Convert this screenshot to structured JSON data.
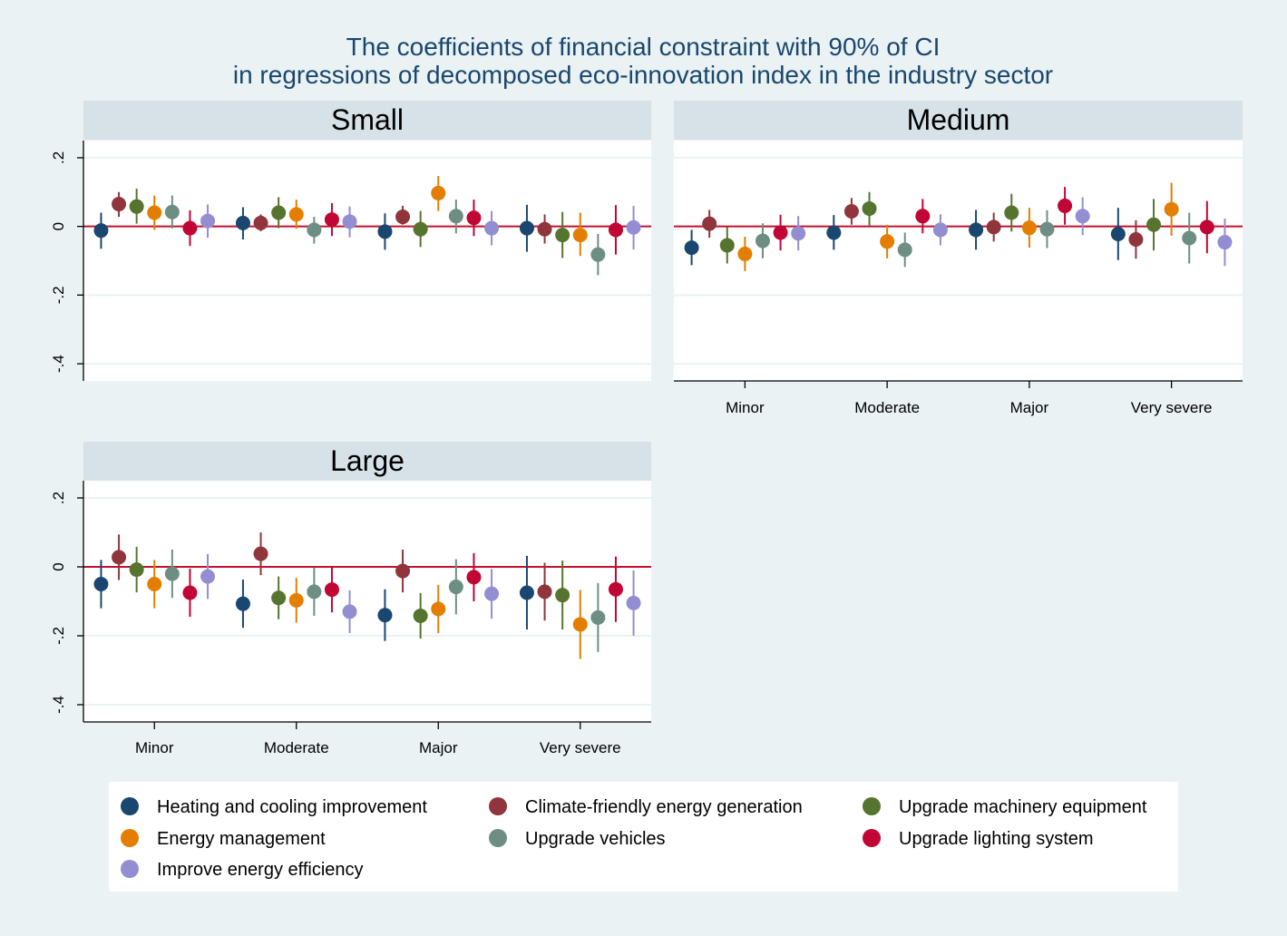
{
  "title": {
    "line1": "The coefficients of financial constraint with 90% of CI",
    "line2": "in regressions of decomposed eco-innovation index in the industry sector"
  },
  "colors": {
    "background": "#eaf2f3",
    "strip": "#d6e2e7",
    "panel": "#ffffff",
    "zero_line": "#c8102e",
    "grid": "#eaf2f3"
  },
  "legend": {
    "position": "bottom",
    "items": [
      {
        "label": "Heating and cooling improvement",
        "color": "#1a476f"
      },
      {
        "label": "Climate-friendly energy generation",
        "color": "#90353b"
      },
      {
        "label": "Upgrade machinery equipment",
        "color": "#55752f"
      },
      {
        "label": "Energy management",
        "color": "#e37e00"
      },
      {
        "label": "Upgrade vehicles",
        "color": "#6e8e84"
      },
      {
        "label": "Upgrade lighting system",
        "color": "#c10534"
      },
      {
        "label": "Improve energy efficiency",
        "color": "#938dd2"
      }
    ]
  },
  "chart_data": {
    "type": "scatter",
    "subtype": "coefficient plot with 90% confidence intervals",
    "categories": [
      "Minor",
      "Moderate",
      "Major",
      "Very severe"
    ],
    "y_ticks": [
      ".2",
      "0",
      "-.2",
      "-.4"
    ],
    "y_tick_values": [
      0.2,
      0,
      -0.2,
      -0.4
    ],
    "ylim": [
      -0.45,
      0.25
    ],
    "grid": true,
    "panels": [
      {
        "name": "Small",
        "series": [
          {
            "name": "Heating and cooling improvement",
            "estimates": [
              [
                -0.012,
                -0.065,
                0.04
              ],
              [
                0.01,
                -0.038,
                0.056
              ],
              [
                -0.015,
                -0.068,
                0.038
              ],
              [
                -0.005,
                -0.074,
                0.063
              ]
            ]
          },
          {
            "name": "Climate-friendly energy generation",
            "estimates": [
              [
                0.065,
                0.028,
                0.1
              ],
              [
                0.01,
                -0.014,
                0.035
              ],
              [
                0.028,
                0.005,
                0.06
              ],
              [
                -0.008,
                -0.05,
                0.035
              ]
            ]
          },
          {
            "name": "Upgrade machinery equipment",
            "estimates": [
              [
                0.058,
                0.008,
                0.11
              ],
              [
                0.04,
                -0.005,
                0.085
              ],
              [
                -0.008,
                -0.06,
                0.045
              ],
              [
                -0.025,
                -0.092,
                0.042
              ]
            ]
          },
          {
            "name": "Energy management",
            "estimates": [
              [
                0.04,
                -0.01,
                0.09
              ],
              [
                0.035,
                -0.007,
                0.078
              ],
              [
                0.097,
                0.045,
                0.147
              ],
              [
                -0.025,
                -0.086,
                0.04
              ]
            ]
          },
          {
            "name": "Upgrade vehicles",
            "estimates": [
              [
                0.042,
                -0.006,
                0.09
              ],
              [
                -0.01,
                -0.05,
                0.028
              ],
              [
                0.03,
                -0.02,
                0.078
              ],
              [
                -0.082,
                -0.142,
                -0.022
              ]
            ]
          },
          {
            "name": "Upgrade lighting system",
            "estimates": [
              [
                -0.005,
                -0.057,
                0.047
              ],
              [
                0.02,
                -0.028,
                0.068
              ],
              [
                0.025,
                -0.028,
                0.078
              ],
              [
                -0.01,
                -0.082,
                0.062
              ]
            ]
          },
          {
            "name": "Improve energy efficiency",
            "estimates": [
              [
                0.016,
                -0.033,
                0.064
              ],
              [
                0.014,
                -0.032,
                0.058
              ],
              [
                -0.005,
                -0.055,
                0.045
              ],
              [
                -0.003,
                -0.067,
                0.06
              ]
            ]
          }
        ]
      },
      {
        "name": "Medium",
        "series": [
          {
            "name": "Heating and cooling improvement",
            "estimates": [
              [
                -0.062,
                -0.113,
                -0.01
              ],
              [
                -0.018,
                -0.068,
                0.033
              ],
              [
                -0.01,
                -0.068,
                0.048
              ],
              [
                -0.022,
                -0.098,
                0.054
              ]
            ]
          },
          {
            "name": "Climate-friendly energy generation",
            "estimates": [
              [
                0.008,
                -0.033,
                0.048
              ],
              [
                0.044,
                0.005,
                0.083
              ],
              [
                -0.002,
                -0.044,
                0.04
              ],
              [
                -0.038,
                -0.094,
                0.018
              ]
            ]
          },
          {
            "name": "Upgrade machinery equipment",
            "estimates": [
              [
                -0.055,
                -0.108,
                -0.002
              ],
              [
                0.052,
                0.003,
                0.1
              ],
              [
                0.04,
                -0.015,
                0.095
              ],
              [
                0.005,
                -0.07,
                0.08
              ]
            ]
          },
          {
            "name": "Energy management",
            "estimates": [
              [
                -0.08,
                -0.13,
                -0.03
              ],
              [
                -0.044,
                -0.093,
                0.005
              ],
              [
                -0.004,
                -0.062,
                0.054
              ],
              [
                0.05,
                -0.027,
                0.127
              ]
            ]
          },
          {
            "name": "Upgrade vehicles",
            "estimates": [
              [
                -0.042,
                -0.093,
                0.009
              ],
              [
                -0.068,
                -0.118,
                -0.018
              ],
              [
                -0.008,
                -0.063,
                0.047
              ],
              [
                -0.034,
                -0.108,
                0.04
              ]
            ]
          },
          {
            "name": "Upgrade lighting system",
            "estimates": [
              [
                -0.018,
                -0.07,
                0.034
              ],
              [
                0.03,
                -0.02,
                0.08
              ],
              [
                0.06,
                0.005,
                0.115
              ],
              [
                -0.002,
                -0.078,
                0.074
              ]
            ]
          },
          {
            "name": "Improve energy efficiency",
            "estimates": [
              [
                -0.02,
                -0.07,
                0.03
              ],
              [
                -0.01,
                -0.055,
                0.035
              ],
              [
                0.03,
                -0.025,
                0.085
              ],
              [
                -0.046,
                -0.115,
                0.023
              ]
            ]
          }
        ]
      },
      {
        "name": "Large",
        "series": [
          {
            "name": "Heating and cooling improvement",
            "estimates": [
              [
                -0.05,
                -0.12,
                0.02
              ],
              [
                -0.107,
                -0.177,
                -0.037
              ],
              [
                -0.14,
                -0.215,
                -0.065
              ],
              [
                -0.075,
                -0.182,
                0.032
              ]
            ]
          },
          {
            "name": "Climate-friendly energy generation",
            "estimates": [
              [
                0.028,
                -0.038,
                0.094
              ],
              [
                0.038,
                -0.024,
                0.1
              ],
              [
                -0.012,
                -0.074,
                0.05
              ],
              [
                -0.072,
                -0.156,
                0.012
              ]
            ]
          },
          {
            "name": "Upgrade machinery equipment",
            "estimates": [
              [
                -0.008,
                -0.074,
                0.058
              ],
              [
                -0.09,
                -0.152,
                -0.028
              ],
              [
                -0.142,
                -0.208,
                -0.076
              ],
              [
                -0.082,
                -0.182,
                0.018
              ]
            ]
          },
          {
            "name": "Energy management",
            "estimates": [
              [
                -0.05,
                -0.12,
                0.02
              ],
              [
                -0.097,
                -0.162,
                -0.032
              ],
              [
                -0.122,
                -0.192,
                -0.052
              ],
              [
                -0.167,
                -0.267,
                -0.067
              ]
            ]
          },
          {
            "name": "Upgrade vehicles",
            "estimates": [
              [
                -0.02,
                -0.09,
                0.05
              ],
              [
                -0.072,
                -0.142,
                -0.002
              ],
              [
                -0.058,
                -0.138,
                0.022
              ],
              [
                -0.147,
                -0.247,
                -0.047
              ]
            ]
          },
          {
            "name": "Upgrade lighting system",
            "estimates": [
              [
                -0.075,
                -0.145,
                -0.005
              ],
              [
                -0.066,
                -0.132,
                0.0
              ],
              [
                -0.03,
                -0.1,
                0.04
              ],
              [
                -0.065,
                -0.16,
                0.03
              ]
            ]
          },
          {
            "name": "Improve energy efficiency",
            "estimates": [
              [
                -0.028,
                -0.093,
                0.037
              ],
              [
                -0.13,
                -0.192,
                -0.068
              ],
              [
                -0.078,
                -0.15,
                -0.006
              ],
              [
                -0.105,
                -0.2,
                -0.01
              ]
            ]
          }
        ]
      }
    ]
  }
}
